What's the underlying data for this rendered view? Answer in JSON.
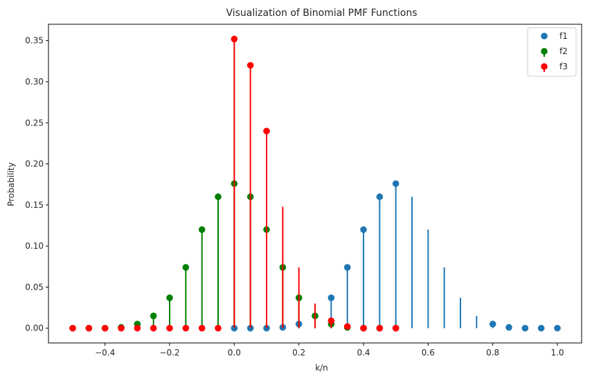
{
  "chart_data": {
    "type": "stem",
    "title": "Visualization of Binomial PMF Functions",
    "xlabel": "k/n",
    "ylabel": "Probability",
    "xlim": [
      -0.575,
      1.075
    ],
    "ylim": [
      -0.018,
      0.37
    ],
    "xticks": [
      -0.4,
      -0.2,
      0.0,
      0.2,
      0.4,
      0.6,
      0.8,
      1.0
    ],
    "xtick_labels": [
      "−0.4",
      "−0.2",
      "0.0",
      "0.2",
      "0.4",
      "0.6",
      "0.8",
      "1.0"
    ],
    "yticks": [
      0.0,
      0.05,
      0.1,
      0.15,
      0.2,
      0.25,
      0.3,
      0.35
    ],
    "ytick_labels": [
      "0.00",
      "0.05",
      "0.10",
      "0.15",
      "0.20",
      "0.25",
      "0.30",
      "0.35"
    ],
    "grid": false,
    "legend": "top-right",
    "series": [
      {
        "name": "f1",
        "color": "#1f77b4",
        "x": [
          0.0,
          0.05,
          0.1,
          0.15,
          0.2,
          0.25,
          0.3,
          0.35,
          0.4,
          0.45,
          0.5,
          0.55,
          0.6,
          0.65,
          0.7,
          0.75,
          0.8,
          0.85,
          0.9,
          0.95,
          1.0
        ],
        "y": [
          0.0,
          0.0,
          0.0,
          0.001,
          0.005,
          0.015,
          0.037,
          0.074,
          0.12,
          0.16,
          0.176,
          0.16,
          0.12,
          0.074,
          0.037,
          0.015,
          0.005,
          0.001,
          0.0,
          0.0,
          0.0
        ],
        "markers_hidden_at": [
          0.55,
          0.6,
          0.65,
          0.7,
          0.75
        ]
      },
      {
        "name": "f2",
        "color": "#008000",
        "x": [
          -0.5,
          -0.45,
          -0.4,
          -0.35,
          -0.3,
          -0.25,
          -0.2,
          -0.15,
          -0.1,
          -0.05,
          0.0,
          0.05,
          0.1,
          0.15,
          0.2,
          0.25,
          0.3,
          0.35,
          0.4,
          0.45,
          0.5
        ],
        "y": [
          0.0,
          0.0,
          0.0,
          0.001,
          0.005,
          0.015,
          0.037,
          0.074,
          0.12,
          0.16,
          0.176,
          0.16,
          0.12,
          0.074,
          0.037,
          0.015,
          0.005,
          0.001,
          0.0,
          0.0,
          0.0
        ],
        "markers_hidden_at": []
      },
      {
        "name": "f3",
        "color": "#ff0000",
        "x": [
          -0.5,
          -0.45,
          -0.4,
          -0.35,
          -0.3,
          -0.25,
          -0.2,
          -0.15,
          -0.1,
          -0.05,
          0.0,
          0.05,
          0.1,
          0.15,
          0.2,
          0.25,
          0.3,
          0.35,
          0.4,
          0.45,
          0.5
        ],
        "y": [
          0.0,
          0.0,
          0.0,
          0.0,
          0.0,
          0.0,
          0.0,
          0.0,
          0.0,
          0.0,
          0.352,
          0.32,
          0.24,
          0.148,
          0.074,
          0.03,
          0.009,
          0.002,
          0.0,
          0.0,
          0.0
        ],
        "markers_hidden_at": [
          0.15,
          0.2,
          0.25
        ]
      }
    ]
  }
}
